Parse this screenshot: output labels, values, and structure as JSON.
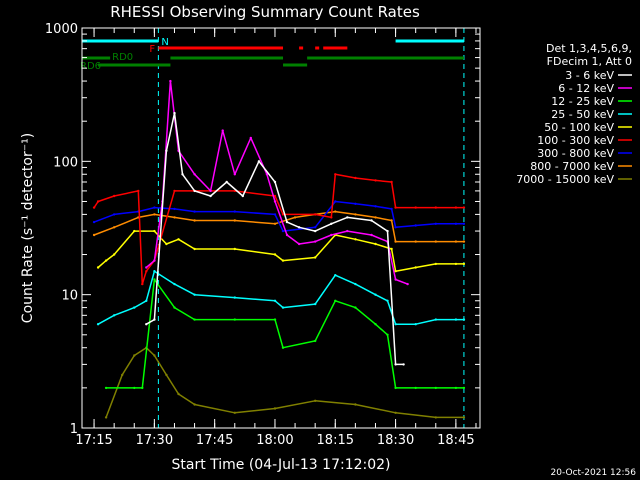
{
  "chart_data": {
    "type": "line",
    "title": "RHESSI Observing Summary Count Rates",
    "xlabel": "Start Time (04-Jul-13 17:12:02)",
    "ylabel": "Count Rate (s⁻¹ detector⁻¹)",
    "yscale": "log",
    "ylim": [
      1,
      1000
    ],
    "xlim_minutes": [
      17.2,
      18.85
    ],
    "x_ticks": [
      "17:15",
      "17:30",
      "17:45",
      "18:00",
      "18:15",
      "18:30",
      "18:45"
    ],
    "y_ticks": [
      "1",
      "10",
      "100",
      "1000"
    ],
    "footer_date": "20-Oct-2021 12:56",
    "legend": {
      "header": [
        "Det 1,3,4,5,6,9,",
        "FDecim 1, Att 0"
      ],
      "placement": "right"
    },
    "flags": [
      {
        "name": "N",
        "color": "#00ffff"
      },
      {
        "name": "F",
        "color": "#ff0000"
      },
      {
        "name": "RD0",
        "color": "#008000"
      },
      {
        "name": "RD6",
        "color": "#008000"
      }
    ],
    "series": [
      {
        "name": "3 - 6 keV",
        "color": "#ffffff",
        "x": [
          "17:28",
          "17:30",
          "17:33",
          "17:35",
          "17:37",
          "17:40",
          "17:44",
          "17:48",
          "17:52",
          "17:56",
          "18:00",
          "18:03",
          "18:06",
          "18:10",
          "18:14",
          "18:18",
          "18:24",
          "18:28",
          "18:30",
          "18:32"
        ],
        "y": [
          6,
          6.5,
          120,
          230,
          80,
          60,
          55,
          70,
          55,
          100,
          70,
          35,
          32,
          30,
          34,
          38,
          36,
          30,
          3,
          3
        ]
      },
      {
        "name": "6 - 12 keV",
        "color": "#ff00ff",
        "x": [
          "17:28",
          "17:30",
          "17:32",
          "17:34",
          "17:36",
          "17:40",
          "17:44",
          "17:47",
          "17:50",
          "17:54",
          "17:58",
          "18:00",
          "18:03",
          "18:06",
          "18:10",
          "18:14",
          "18:18",
          "18:24",
          "18:28",
          "18:30",
          "18:33"
        ],
        "y": [
          16,
          18,
          50,
          400,
          120,
          80,
          60,
          170,
          80,
          150,
          80,
          50,
          28,
          24,
          25,
          28,
          30,
          28,
          25,
          13,
          12
        ]
      },
      {
        "name": "12 - 25 keV",
        "color": "#00ff00",
        "x": [
          "17:18",
          "17:25",
          "17:27",
          "17:30",
          "17:35",
          "17:40",
          "17:50",
          "18:00",
          "18:02",
          "18:10",
          "18:15",
          "18:20",
          "18:25",
          "18:28",
          "18:30",
          "18:35",
          "18:40",
          "18:45",
          "18:47"
        ],
        "y": [
          2,
          2,
          2,
          13,
          8,
          6.5,
          6.5,
          6.5,
          4,
          4.5,
          9,
          8,
          6,
          5,
          2,
          2,
          2,
          2,
          2
        ]
      },
      {
        "name": "25 - 50 keV",
        "color": "#00ffff",
        "x": [
          "17:16",
          "17:20",
          "17:25",
          "17:28",
          "17:30",
          "17:35",
          "17:40",
          "17:50",
          "18:00",
          "18:02",
          "18:10",
          "18:15",
          "18:20",
          "18:25",
          "18:28",
          "18:30",
          "18:35",
          "18:40",
          "18:45",
          "18:47"
        ],
        "y": [
          6,
          7,
          8,
          9,
          15,
          12,
          10,
          9.5,
          9,
          8,
          8.5,
          14,
          12,
          10,
          9,
          6,
          6,
          6.5,
          6.5,
          6.5
        ]
      },
      {
        "name": "50 - 100 keV",
        "color": "#ffff00",
        "x": [
          "17:16",
          "17:18",
          "17:20",
          "17:25",
          "17:30",
          "17:33",
          "17:36",
          "17:40",
          "17:50",
          "18:00",
          "18:02",
          "18:10",
          "18:15",
          "18:20",
          "18:25",
          "18:29",
          "18:30",
          "18:35",
          "18:40",
          "18:45",
          "18:47"
        ],
        "y": [
          16,
          18,
          20,
          30,
          30,
          24,
          26,
          22,
          22,
          20,
          18,
          19,
          28,
          26,
          24,
          22,
          15,
          16,
          17,
          17,
          17
        ]
      },
      {
        "name": "100 - 300 keV",
        "color": "#ff0000",
        "x": [
          "17:15",
          "17:16",
          "17:20",
          "17:26",
          "17:27",
          "17:28",
          "17:30",
          "17:35",
          "17:40",
          "17:50",
          "18:00",
          "18:02",
          "18:10",
          "18:14",
          "18:15",
          "18:20",
          "18:25",
          "18:29",
          "18:30",
          "18:35",
          "18:40",
          "18:45",
          "18:47"
        ],
        "y": [
          45,
          50,
          55,
          60,
          12,
          15,
          18,
          60,
          60,
          60,
          55,
          40,
          40,
          38,
          80,
          75,
          72,
          70,
          45,
          45,
          45,
          45,
          45
        ]
      },
      {
        "name": "300 - 800 keV",
        "color": "#0000ff",
        "x": [
          "17:15",
          "17:20",
          "17:26",
          "17:30",
          "17:35",
          "17:40",
          "17:50",
          "18:00",
          "18:02",
          "18:10",
          "18:15",
          "18:20",
          "18:25",
          "18:29",
          "18:30",
          "18:35",
          "18:40",
          "18:45",
          "18:47"
        ],
        "y": [
          35,
          40,
          42,
          45,
          44,
          42,
          42,
          40,
          30,
          32,
          50,
          48,
          46,
          44,
          32,
          33,
          34,
          34,
          34
        ]
      },
      {
        "name": "800 - 7000 keV",
        "color": "#ff8c00",
        "x": [
          "17:15",
          "17:20",
          "17:26",
          "17:30",
          "17:35",
          "17:40",
          "17:50",
          "18:00",
          "18:05",
          "18:10",
          "18:15",
          "18:20",
          "18:25",
          "18:29",
          "18:30",
          "18:35",
          "18:40",
          "18:45",
          "18:47"
        ],
        "y": [
          28,
          32,
          38,
          40,
          38,
          36,
          36,
          34,
          38,
          40,
          42,
          40,
          38,
          36,
          25,
          25,
          25,
          25,
          25
        ]
      },
      {
        "name": "7000 - 15000 keV",
        "color": "#808000",
        "x": [
          "17:18",
          "17:22",
          "17:25",
          "17:28",
          "17:30",
          "17:33",
          "17:36",
          "17:40",
          "17:50",
          "18:00",
          "18:10",
          "18:20",
          "18:30",
          "18:40",
          "18:47"
        ],
        "y": [
          1.2,
          2.5,
          3.5,
          4,
          3.5,
          2.5,
          1.8,
          1.5,
          1.3,
          1.4,
          1.6,
          1.5,
          1.3,
          1.2,
          1.2
        ]
      }
    ]
  }
}
